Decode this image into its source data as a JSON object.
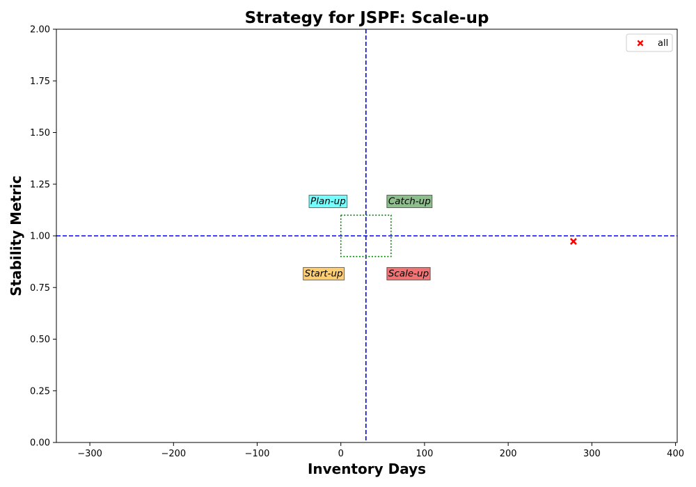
{
  "chart_data": {
    "type": "scatter",
    "title": "Strategy for JSPF: Scale-up",
    "xlabel": "Inventory Days",
    "ylabel": "Stability Metric",
    "xlim": [
      -340,
      402
    ],
    "ylim": [
      0,
      2
    ],
    "xticks": [
      -300,
      -200,
      -100,
      0,
      100,
      200,
      300,
      400
    ],
    "xtick_labels": [
      "−300",
      "−200",
      "−100",
      "0",
      "100",
      "200",
      "300",
      "400"
    ],
    "yticks": [
      0,
      0.25,
      0.5,
      0.75,
      1.0,
      1.25,
      1.5,
      1.75,
      2.0
    ],
    "ytick_labels": [
      "0.00",
      "0.25",
      "0.50",
      "0.75",
      "1.00",
      "1.25",
      "1.50",
      "1.75",
      "2.00"
    ],
    "grid": false,
    "legend_position": "top-right",
    "series": [
      {
        "name": "all",
        "marker": "X",
        "color": "#ff0000",
        "points": [
          {
            "x": 278,
            "y": 0.973
          }
        ]
      }
    ],
    "reference_lines": {
      "vertical_x": 30,
      "horizontal_y": 1.0,
      "color": "#0000ff",
      "style": "dashed"
    },
    "threshold_box": {
      "x": [
        0,
        60
      ],
      "y": [
        0.9,
        1.1
      ],
      "color": "#008000",
      "style": "dotted"
    },
    "quadrant_labels": [
      {
        "text": "Plan-up",
        "x": -38,
        "y": 1.17,
        "color": "#00ffff"
      },
      {
        "text": "Catch-up",
        "x": 55,
        "y": 1.17,
        "color": "#2e8b2e"
      },
      {
        "text": "Start-up",
        "x": -45,
        "y": 0.82,
        "color": "#ffa500"
      },
      {
        "text": "Scale-up",
        "x": 55,
        "y": 0.82,
        "color": "#e60000"
      }
    ]
  }
}
